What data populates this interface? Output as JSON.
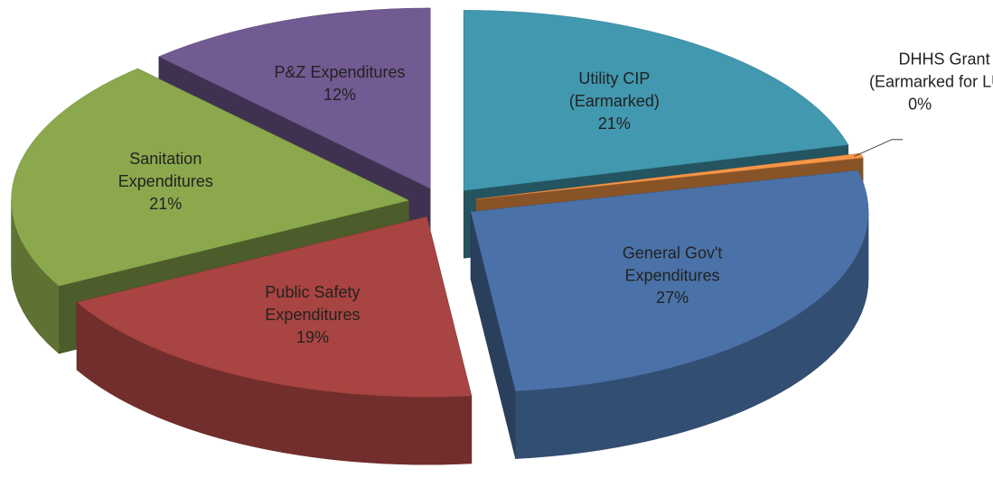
{
  "chart_data": {
    "type": "pie3d",
    "categories": [
      "Utility CIP\n(Earmarked)",
      "DHHS Grant\n(Earmarked for LUP)",
      "General Gov't\nExpenditures",
      "Public Safety\nExpenditures",
      "Sanitation\nExpenditures",
      "P&Z Expenditures"
    ],
    "values": [
      21,
      0.4,
      27,
      19,
      21,
      12
    ],
    "value_labels": [
      "21%",
      "0%",
      "27%",
      "19%",
      "21%",
      "12%"
    ],
    "colors": [
      "#4198af",
      "#f79646",
      "#4a72a8",
      "#a84441",
      "#8ba84c",
      "#725a92"
    ]
  }
}
